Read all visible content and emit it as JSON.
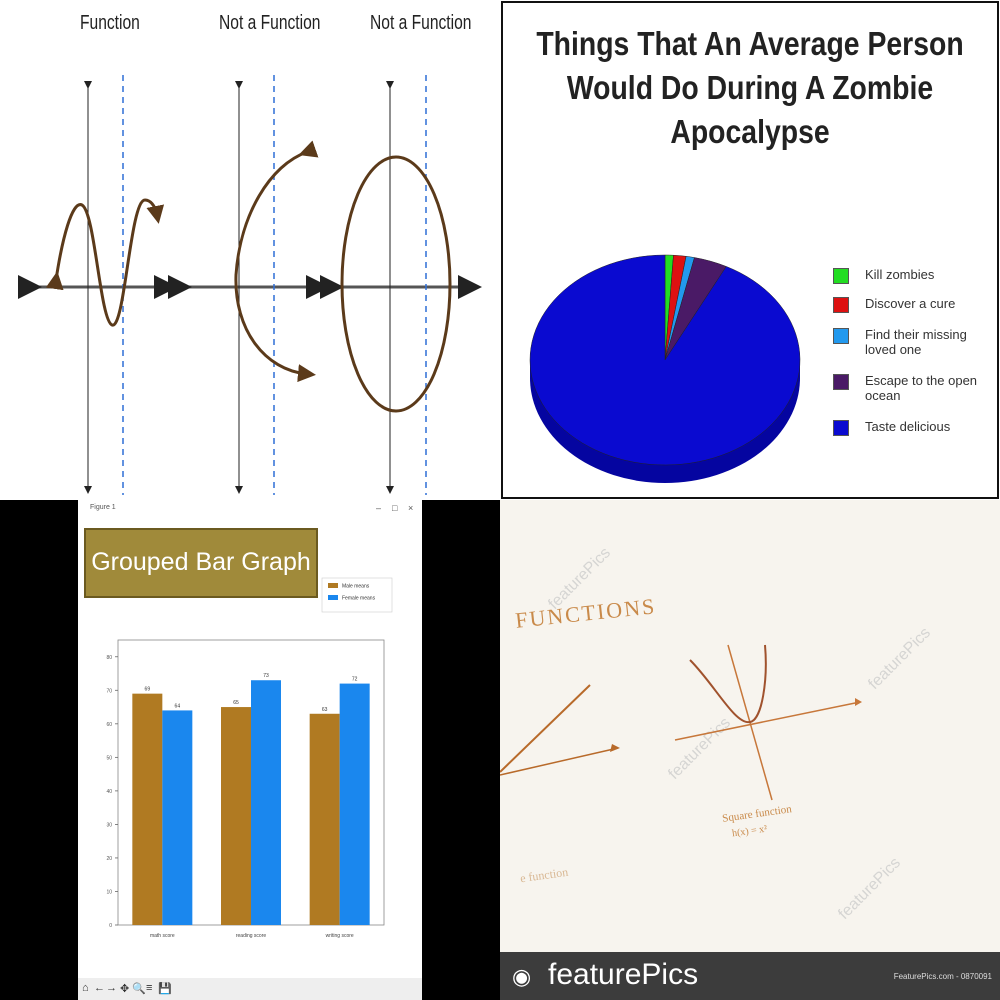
{
  "panel_functions": {
    "titles": [
      "Function",
      "Not a Function",
      "Not a Function"
    ],
    "curve_color": "#5b3a1a",
    "dashed_line_color": "#2f6fd6"
  },
  "chart_data": [
    {
      "type": "pie",
      "title": "Things That An Average Person Would Do During A Zombie Apocalypse",
      "categories": [
        "Kill zombies",
        "Discover a cure",
        "Find their missing loved one",
        "Escape to the open ocean",
        "Taste delicious"
      ],
      "values": [
        1,
        1.5,
        1,
        4,
        92.5
      ],
      "colors": [
        "#22dd22",
        "#dd1111",
        "#2299ee",
        "#4a1a66",
        "#0a0ad0"
      ],
      "legend_position": "right"
    },
    {
      "type": "bar",
      "title": "Grouped Bar Graph",
      "categories": [
        "math score",
        "reading score",
        "writing score"
      ],
      "series": [
        {
          "name": "Male means",
          "values": [
            69,
            65,
            63
          ],
          "labels": [
            "69",
            "65",
            "63"
          ],
          "color": "#b07a22"
        },
        {
          "name": "Female means",
          "values": [
            64,
            73,
            72
          ],
          "labels": [
            "64",
            "73",
            "72"
          ],
          "color": "#1a87ee"
        }
      ],
      "ylim": [
        0,
        85
      ],
      "yticks": [
        "0",
        "10",
        "20",
        "30",
        "40",
        "50",
        "60",
        "70",
        "80"
      ],
      "legend_position": "top-right"
    }
  ],
  "matplotlib_window": {
    "title": "Figure 1",
    "controls": [
      "–",
      "□",
      "×"
    ],
    "toolbar_icons": [
      "⌂",
      "←",
      "→",
      "✥",
      "🔍",
      "≡",
      "💾"
    ]
  },
  "featurepics": {
    "heading": "FUNCTIONS",
    "graph_caption_1": "Square function",
    "graph_caption_2": "h(x) = x²",
    "side_caption": "e function",
    "brand": "featurePics",
    "footer_id": "FeaturePics.com - 0870091",
    "watermark": "featurePics"
  }
}
